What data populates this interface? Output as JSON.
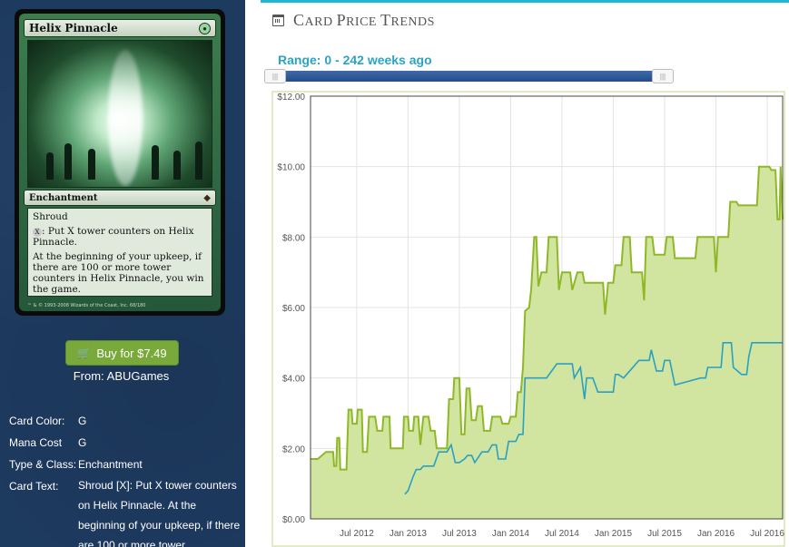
{
  "card": {
    "name": "Helix Pinnacle",
    "type_line": "Enchantment",
    "rules_text": [
      "Shroud",
      ": Put X tower counters on Helix Pinnacle.",
      "At the beginning of your upkeep, if there are 100 or more tower counters in Helix Pinnacle, you win the game."
    ],
    "mana_symbol": "X",
    "footer": "™ & © 1993-2008 Wizards of the Coast, Inc. 68/180"
  },
  "buy": {
    "label": "Buy for $7.49",
    "from_label": "From:",
    "from_value": "ABUGames"
  },
  "details": [
    {
      "label": "Card Color:",
      "value": "G"
    },
    {
      "label": "Mana Cost",
      "value": "G"
    },
    {
      "label": "Type & Class:",
      "value": "Enchantment"
    },
    {
      "label": "Card Text:",
      "value": "Shroud [X]: Put X tower counters on Helix Pinnacle. At the beginning of your upkeep, if there are 100 or more tower"
    }
  ],
  "section": {
    "title_first": "C",
    "title_rest_1": "ARD ",
    "title_p": "P",
    "title_rest_2": "RICE ",
    "title_t": "T",
    "title_rest_3": "RENDS"
  },
  "range": {
    "label": "Range: 0 - 242 weeks ago",
    "handle_glyph": "|||"
  },
  "chart_data": {
    "type": "line",
    "x_tick_labels": [
      "Jul 2012",
      "Jan 2013",
      "Jul 2013",
      "Jan 2014",
      "Jul 2014",
      "Jan 2015",
      "Jul 2015",
      "Jan 2016",
      "Jul 2016"
    ],
    "x_tick_positions": [
      2012.5,
      2013.0,
      2013.5,
      2014.0,
      2014.5,
      2015.0,
      2015.5,
      2016.0,
      2016.5
    ],
    "xlim": [
      2012.05,
      2016.65
    ],
    "y_tick_labels": [
      "$0.00",
      "$2.00",
      "$4.00",
      "$6.00",
      "$8.00",
      "$10.00",
      "$12.00"
    ],
    "y_tick_values": [
      0,
      2,
      4,
      6,
      8,
      10,
      12
    ],
    "ylim": [
      0,
      12
    ],
    "colors": {
      "green_line": "#8fb827",
      "green_fill": "#d2e5a0",
      "blue_line": "#2aa0c2",
      "plot_border": "#c6d98a"
    },
    "series": [
      {
        "color_key": "green",
        "points": [
          [
            2012.05,
            1.7
          ],
          [
            2012.12,
            1.7
          ],
          [
            2012.2,
            1.9
          ],
          [
            2012.27,
            1.9
          ],
          [
            2012.28,
            1.5
          ],
          [
            2012.3,
            1.5
          ],
          [
            2012.31,
            2.3
          ],
          [
            2012.33,
            2.3
          ],
          [
            2012.34,
            1.4
          ],
          [
            2012.4,
            1.4
          ],
          [
            2012.42,
            3.1
          ],
          [
            2012.45,
            3.1
          ],
          [
            2012.46,
            2.7
          ],
          [
            2012.5,
            2.7
          ],
          [
            2012.51,
            3.1
          ],
          [
            2012.55,
            3.1
          ],
          [
            2012.56,
            1.9
          ],
          [
            2012.6,
            1.9
          ],
          [
            2012.62,
            2.9
          ],
          [
            2012.68,
            2.9
          ],
          [
            2012.7,
            2.5
          ],
          [
            2012.75,
            2.5
          ],
          [
            2012.76,
            2.9
          ],
          [
            2012.82,
            2.9
          ],
          [
            2012.83,
            2.0
          ],
          [
            2012.95,
            2.0
          ],
          [
            2012.96,
            2.9
          ],
          [
            2013.0,
            2.9
          ],
          [
            2013.01,
            2.5
          ],
          [
            2013.05,
            2.5
          ],
          [
            2013.06,
            2.9
          ],
          [
            2013.1,
            2.9
          ],
          [
            2013.12,
            2.1
          ],
          [
            2013.15,
            2.9
          ],
          [
            2013.2,
            2.9
          ],
          [
            2013.22,
            2.5
          ],
          [
            2013.26,
            2.5
          ],
          [
            2013.28,
            2.0
          ],
          [
            2013.38,
            2.0
          ],
          [
            2013.4,
            3.4
          ],
          [
            2013.44,
            3.4
          ],
          [
            2013.45,
            4.0
          ],
          [
            2013.5,
            4.0
          ],
          [
            2013.52,
            2.4
          ],
          [
            2013.55,
            2.4
          ],
          [
            2013.57,
            3.7
          ],
          [
            2013.6,
            3.7
          ],
          [
            2013.62,
            2.8
          ],
          [
            2013.66,
            2.8
          ],
          [
            2013.68,
            3.2
          ],
          [
            2013.72,
            3.2
          ],
          [
            2013.74,
            2.5
          ],
          [
            2013.8,
            2.5
          ],
          [
            2013.82,
            2.9
          ],
          [
            2013.9,
            2.9
          ],
          [
            2013.92,
            2.7
          ],
          [
            2013.98,
            2.7
          ],
          [
            2014.0,
            2.9
          ],
          [
            2014.05,
            2.9
          ],
          [
            2014.07,
            3.6
          ],
          [
            2014.1,
            3.6
          ],
          [
            2014.12,
            4.3
          ],
          [
            2014.14,
            5.9
          ],
          [
            2014.18,
            6.0
          ],
          [
            2014.2,
            6.5
          ],
          [
            2014.23,
            8.0
          ],
          [
            2014.25,
            8.0
          ],
          [
            2014.27,
            6.6
          ],
          [
            2014.3,
            7.0
          ],
          [
            2014.35,
            7.0
          ],
          [
            2014.37,
            8.0
          ],
          [
            2014.45,
            8.0
          ],
          [
            2014.47,
            6.5
          ],
          [
            2014.5,
            7.0
          ],
          [
            2014.58,
            7.0
          ],
          [
            2014.6,
            6.5
          ],
          [
            2014.65,
            7.0
          ],
          [
            2014.7,
            7.0
          ],
          [
            2014.72,
            6.7
          ],
          [
            2014.9,
            6.7
          ],
          [
            2014.92,
            5.8
          ],
          [
            2014.95,
            6.7
          ],
          [
            2015.0,
            6.7
          ],
          [
            2015.02,
            7.2
          ],
          [
            2015.08,
            7.2
          ],
          [
            2015.1,
            8.0
          ],
          [
            2015.16,
            8.0
          ],
          [
            2015.18,
            7.0
          ],
          [
            2015.28,
            7.0
          ],
          [
            2015.3,
            6.2
          ],
          [
            2015.32,
            8.0
          ],
          [
            2015.38,
            8.0
          ],
          [
            2015.4,
            7.5
          ],
          [
            2015.5,
            7.5
          ],
          [
            2015.52,
            8.0
          ],
          [
            2015.58,
            8.0
          ],
          [
            2015.6,
            7.4
          ],
          [
            2015.8,
            7.4
          ],
          [
            2015.82,
            8.0
          ],
          [
            2015.98,
            8.0
          ],
          [
            2016.0,
            7.0
          ],
          [
            2016.02,
            8.0
          ],
          [
            2016.12,
            8.0
          ],
          [
            2016.14,
            9.0
          ],
          [
            2016.2,
            9.0
          ],
          [
            2016.22,
            8.9
          ],
          [
            2016.4,
            8.9
          ],
          [
            2016.42,
            10.0
          ],
          [
            2016.52,
            10.0
          ],
          [
            2016.54,
            9.9
          ],
          [
            2016.58,
            9.9
          ],
          [
            2016.6,
            8.5
          ],
          [
            2016.62,
            8.5
          ],
          [
            2016.63,
            10.0
          ],
          [
            2016.65,
            8.5
          ]
        ]
      },
      {
        "color_key": "blue",
        "points": [
          [
            2012.97,
            0.7
          ],
          [
            2013.0,
            0.8
          ],
          [
            2013.05,
            1.2
          ],
          [
            2013.08,
            1.4
          ],
          [
            2013.12,
            1.4
          ],
          [
            2013.15,
            1.5
          ],
          [
            2013.25,
            1.5
          ],
          [
            2013.3,
            1.9
          ],
          [
            2013.38,
            1.9
          ],
          [
            2013.42,
            2.1
          ],
          [
            2013.46,
            1.6
          ],
          [
            2013.5,
            1.6
          ],
          [
            2013.55,
            1.7
          ],
          [
            2013.58,
            1.8
          ],
          [
            2013.62,
            1.8
          ],
          [
            2013.65,
            1.6
          ],
          [
            2013.72,
            1.9
          ],
          [
            2013.78,
            1.9
          ],
          [
            2013.82,
            2.1
          ],
          [
            2013.86,
            2.1
          ],
          [
            2013.88,
            1.7
          ],
          [
            2013.95,
            1.7
          ],
          [
            2013.98,
            2.2
          ],
          [
            2014.05,
            2.2
          ],
          [
            2014.08,
            2.4
          ],
          [
            2014.12,
            2.4
          ],
          [
            2014.14,
            4.0
          ],
          [
            2014.35,
            4.0
          ],
          [
            2014.4,
            4.2
          ],
          [
            2014.45,
            4.4
          ],
          [
            2014.6,
            4.4
          ],
          [
            2014.62,
            4.0
          ],
          [
            2014.68,
            4.3
          ],
          [
            2014.72,
            3.4
          ],
          [
            2014.74,
            4.0
          ],
          [
            2014.8,
            4.0
          ],
          [
            2014.85,
            3.6
          ],
          [
            2015.0,
            3.6
          ],
          [
            2015.02,
            4.1
          ],
          [
            2015.05,
            4.1
          ],
          [
            2015.1,
            4.0
          ],
          [
            2015.25,
            4.5
          ],
          [
            2015.35,
            4.5
          ],
          [
            2015.37,
            4.8
          ],
          [
            2015.42,
            4.2
          ],
          [
            2015.48,
            4.2
          ],
          [
            2015.5,
            4.5
          ],
          [
            2015.55,
            4.5
          ],
          [
            2015.6,
            3.8
          ],
          [
            2015.85,
            4.0
          ],
          [
            2015.9,
            4.0
          ],
          [
            2015.92,
            4.3
          ],
          [
            2016.05,
            4.3
          ],
          [
            2016.07,
            5.0
          ],
          [
            2016.15,
            5.0
          ],
          [
            2016.17,
            4.3
          ],
          [
            2016.25,
            4.1
          ],
          [
            2016.3,
            4.1
          ],
          [
            2016.32,
            4.6
          ],
          [
            2016.35,
            5.0
          ],
          [
            2016.65,
            5.0
          ]
        ]
      }
    ]
  }
}
